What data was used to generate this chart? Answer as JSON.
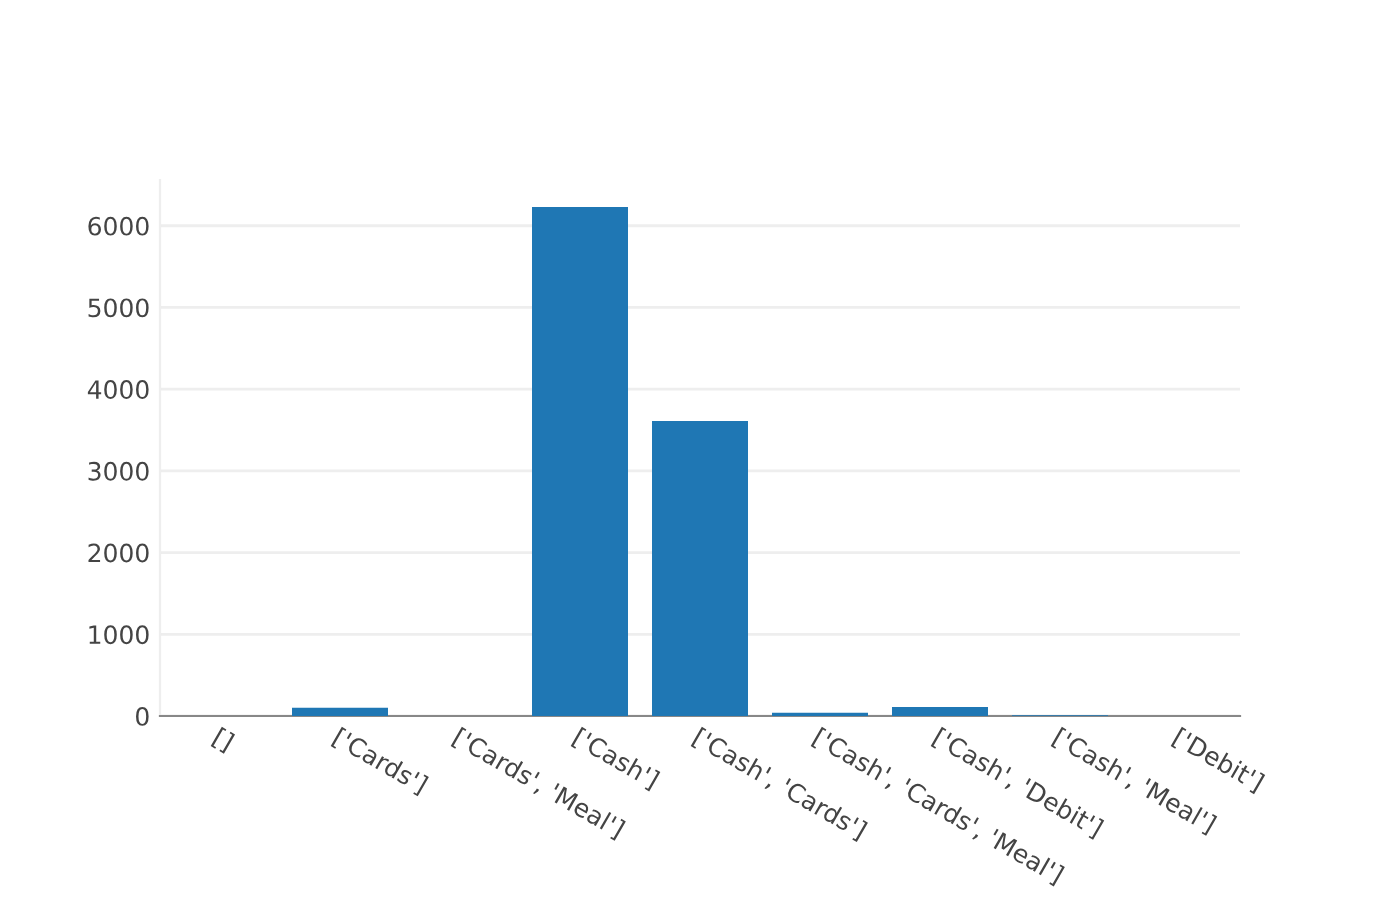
{
  "chart_data": {
    "type": "bar",
    "categories": [
      "[]",
      "['Cards']",
      "['Cards', 'Meal']",
      "['Cash']",
      "['Cash', 'Cards']",
      "['Cash', 'Cards', 'Meal']",
      "['Cash', 'Debit']",
      "['Cash', 'Meal']",
      "['Debit']"
    ],
    "values": [
      0,
      100,
      0,
      6230,
      3610,
      40,
      110,
      10,
      0
    ],
    "color": "#1f77b4",
    "ylim": [
      0,
      6560
    ],
    "yticks": [
      0,
      1000,
      2000,
      3000,
      4000,
      5000,
      6000
    ],
    "grid": "y"
  }
}
